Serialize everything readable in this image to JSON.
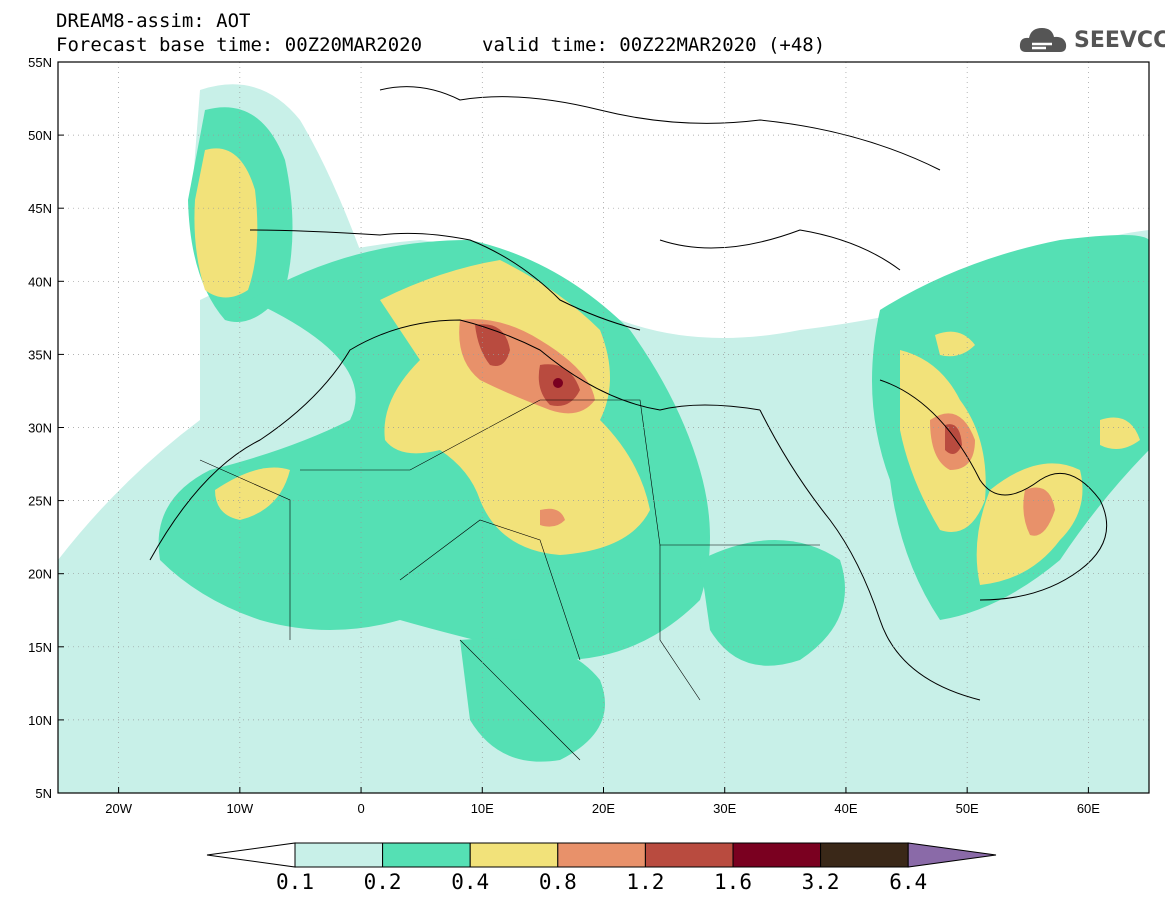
{
  "header": {
    "line1": "DREAM8-assim: AOT",
    "line2": "Forecast base time: 00Z20MAR2020",
    "valid": "valid time: 00Z22MAR2020 (+48)"
  },
  "logo": {
    "text": "SEEVCCC",
    "icon": "cloud-icon"
  },
  "axes": {
    "lat_ticks": [
      "55N",
      "50N",
      "45N",
      "40N",
      "35N",
      "30N",
      "25N",
      "20N",
      "15N",
      "10N",
      "5N"
    ],
    "lon_ticks": [
      "20W",
      "10W",
      "0",
      "10E",
      "20E",
      "30E",
      "40E",
      "50E",
      "60E"
    ]
  },
  "colorbar": {
    "labels": [
      "0.1",
      "0.2",
      "0.4",
      "0.8",
      "1.2",
      "1.6",
      "3.2",
      "6.4"
    ],
    "colors": [
      "#ffffff",
      "#c8f0e8",
      "#55e0b4",
      "#f2e27a",
      "#e8916a",
      "#b94b3f",
      "#7a0020",
      "#3a2818",
      "#8a6aa8"
    ]
  },
  "chart_data": {
    "type": "heatmap",
    "title": "DREAM8-assim: AOT",
    "lon_range": [
      -25,
      65
    ],
    "lat_range": [
      5,
      55
    ],
    "levels": [
      0.1,
      0.2,
      0.4,
      0.8,
      1.2,
      1.6,
      3.2,
      6.4
    ],
    "max_location": {
      "lon": 16,
      "lat": 33
    }
  }
}
